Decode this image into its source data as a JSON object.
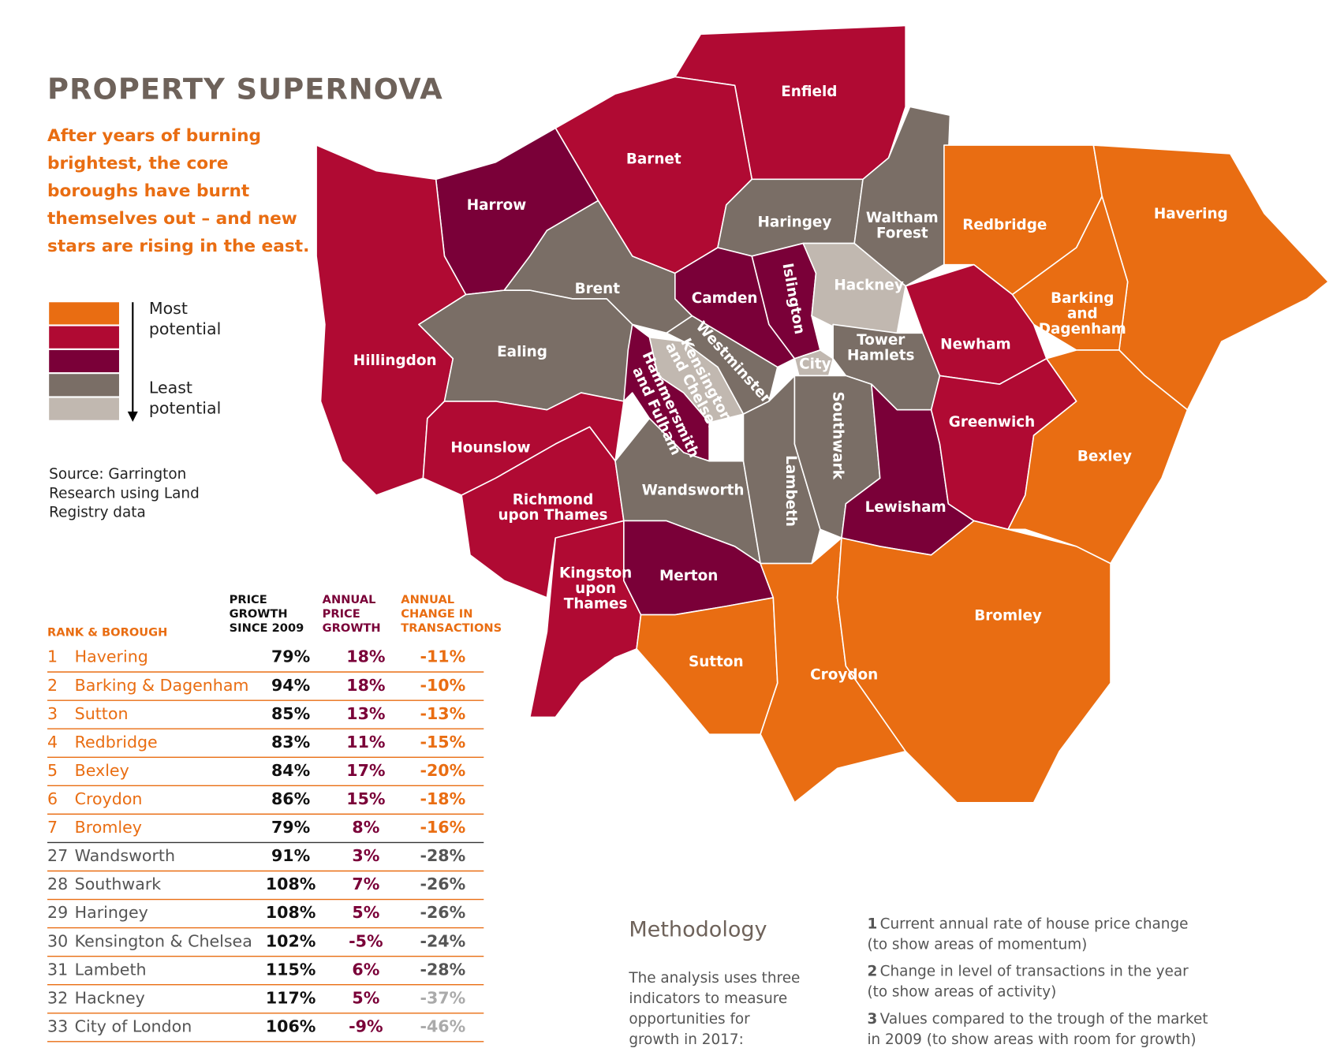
{
  "header": {
    "title": "PROPERTY SUPERNOVA",
    "subtitle": [
      "After years of burning",
      "brightest, the core",
      "boroughs have burnt",
      "themselves out – and new",
      "stars are rising in the east."
    ]
  },
  "legend": {
    "colors": [
      "#e96d12",
      "#b00a33",
      "#7a0038",
      "#7a6e66",
      "#c1b8b0"
    ],
    "top_label": [
      "Most",
      "potential"
    ],
    "bottom_label": [
      "Least",
      "potential"
    ]
  },
  "source": [
    "Source: Garrington",
    "Research using Land",
    "Registry data"
  ],
  "map": {
    "boroughs": [
      {
        "name": [
          "Enfield"
        ],
        "color": "#b00a33"
      },
      {
        "name": [
          "Barnet"
        ],
        "color": "#b00a33"
      },
      {
        "name": [
          "Harrow"
        ],
        "color": "#7a0038"
      },
      {
        "name": [
          "Hillingdon"
        ],
        "color": "#b00a33"
      },
      {
        "name": [
          "Haringey"
        ],
        "color": "#7a6e66"
      },
      {
        "name": [
          "Waltham",
          "Forest"
        ],
        "color": "#7a6e66"
      },
      {
        "name": [
          "Redbridge"
        ],
        "color": "#e96d12"
      },
      {
        "name": [
          "Havering"
        ],
        "color": "#e96d12"
      },
      {
        "name": [
          "Barking",
          "and",
          "Dagenham"
        ],
        "color": "#e96d12"
      },
      {
        "name": [
          "Brent"
        ],
        "color": "#7a6e66"
      },
      {
        "name": [
          "Camden"
        ],
        "color": "#7a0038"
      },
      {
        "name": [
          "Islington"
        ],
        "color": "#7a0038"
      },
      {
        "name": [
          "Hackney"
        ],
        "color": "#c1b8b0"
      },
      {
        "name": [
          "Ealing"
        ],
        "color": "#7a6e66"
      },
      {
        "name": [
          "Westminster"
        ],
        "color": "#7a6e66"
      },
      {
        "name": [
          "Kensington",
          "and Chelsea"
        ],
        "color": "#c1b8b0"
      },
      {
        "name": [
          "Hammersmith",
          "and Fulham"
        ],
        "color": "#7a0038"
      },
      {
        "name": [
          "City"
        ],
        "color": "#c1b8b0"
      },
      {
        "name": [
          "Tower",
          "Hamlets"
        ],
        "color": "#7a6e66"
      },
      {
        "name": [
          "Newham"
        ],
        "color": "#b00a33"
      },
      {
        "name": [
          "Hounslow"
        ],
        "color": "#b00a33"
      },
      {
        "name": [
          "Richmond",
          "upon Thames"
        ],
        "color": "#b00a33"
      },
      {
        "name": [
          "Wandsworth"
        ],
        "color": "#7a6e66"
      },
      {
        "name": [
          "Lambeth"
        ],
        "color": "#7a6e66"
      },
      {
        "name": [
          "Southwark"
        ],
        "color": "#7a6e66"
      },
      {
        "name": [
          "Lewisham"
        ],
        "color": "#7a0038"
      },
      {
        "name": [
          "Greenwich"
        ],
        "color": "#b00a33"
      },
      {
        "name": [
          "Bexley"
        ],
        "color": "#e96d12"
      },
      {
        "name": [
          "Kingston",
          "upon",
          "Thames"
        ],
        "color": "#b00a33"
      },
      {
        "name": [
          "Merton"
        ],
        "color": "#7a0038"
      },
      {
        "name": [
          "Sutton"
        ],
        "color": "#e96d12"
      },
      {
        "name": [
          "Croydon"
        ],
        "color": "#e96d12"
      },
      {
        "name": [
          "Bromley"
        ],
        "color": "#e96d12"
      }
    ]
  },
  "table": {
    "headers": [
      [
        "RANK & BOROUGH"
      ],
      [
        "PRICE",
        "GROWTH",
        "SINCE 2009"
      ],
      [
        "ANNUAL",
        "PRICE",
        "GROWTH"
      ],
      [
        "ANNUAL",
        "CHANGE IN",
        "TRANSACTIONS"
      ]
    ],
    "rows": [
      [
        "1",
        "Havering",
        "79%",
        "18%",
        "-11%"
      ],
      [
        "2",
        "Barking & Dagenham",
        "94%",
        "18%",
        "-10%"
      ],
      [
        "3",
        "Sutton",
        "85%",
        "13%",
        "-13%"
      ],
      [
        "4",
        "Redbridge",
        "83%",
        "11%",
        "-15%"
      ],
      [
        "5",
        "Bexley",
        "84%",
        "17%",
        "-20%"
      ],
      [
        "6",
        "Croydon",
        "86%",
        "15%",
        "-18%"
      ],
      [
        "7",
        "Bromley",
        "79%",
        "8%",
        "-16%"
      ],
      [
        "27",
        "Wandsworth",
        "91%",
        "3%",
        "-28%"
      ],
      [
        "28",
        "Southwark",
        "108%",
        "7%",
        "-26%"
      ],
      [
        "29",
        "Haringey",
        "108%",
        "5%",
        "-26%"
      ],
      [
        "30",
        "Kensington & Chelsea",
        "102%",
        "-5%",
        "-24%"
      ],
      [
        "31",
        "Lambeth",
        "115%",
        "6%",
        "-28%"
      ],
      [
        "32",
        "Hackney",
        "117%",
        "5%",
        "-37%"
      ],
      [
        "33",
        "City of London",
        "106%",
        "-9%",
        "-46%"
      ]
    ]
  },
  "methodology": {
    "title": "Methodology",
    "intro": [
      "The analysis uses three",
      "indicators to measure",
      "opportunities for",
      "growth in 2017:"
    ],
    "items": [
      {
        "number": "1",
        "text": [
          "Current annual rate of house price change",
          "(to show areas of momentum)"
        ]
      },
      {
        "number": "2",
        "text": [
          "Change in level of transactions in the year",
          "(to show areas of activity)"
        ]
      },
      {
        "number": "3",
        "text": [
          "Values compared to the trough of the market",
          "in 2009 (to show areas with room for growth)"
        ]
      }
    ]
  }
}
